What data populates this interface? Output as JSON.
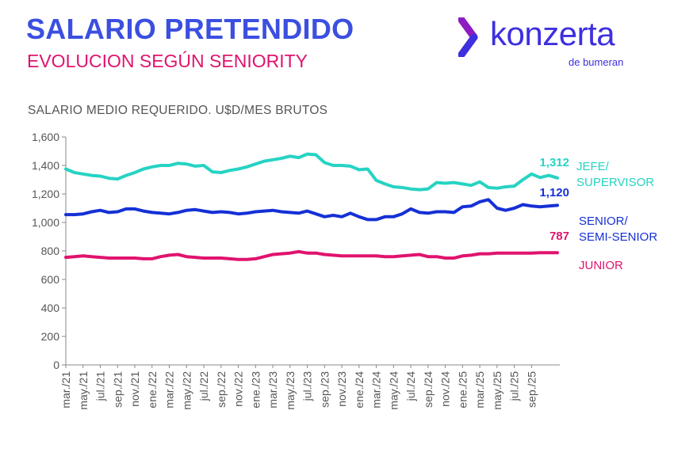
{
  "header": {
    "title": "SALARIO PRETENDIDO",
    "subtitle": "EVOLUCION SEGÚN SENIORITY"
  },
  "logo": {
    "brand": "konzerta",
    "tagline": "de bumeran",
    "icon": "chevron-mark-icon"
  },
  "colors": {
    "title": "#3b4fe0",
    "subtitle": "#e0136e",
    "jefe": "#27d3c3",
    "senior": "#1530d6",
    "junior": "#e0136e"
  },
  "chart_data": {
    "type": "line",
    "title": "SALARIO MEDIO REQUERIDO. U$D/MES BRUTOS",
    "ylim": [
      0,
      1600
    ],
    "yticks": [
      "0",
      "200",
      "400",
      "600",
      "800",
      "1,000",
      "1,200",
      "1,400",
      "1,600"
    ],
    "xtick_labels": [
      "mar./21",
      "may./21",
      "jul./21",
      "sep./21",
      "nov./21",
      "ene./22",
      "mar./22",
      "may./22",
      "jul./22",
      "sep./22",
      "nov./22",
      "ene./23",
      "mar./23",
      "may./23",
      "jul./23",
      "sep./23",
      "nov./23",
      "ene./24",
      "mar./24",
      "may./24",
      "jul./24",
      "sep./24",
      "nov./24",
      "ene./25",
      "mar./25",
      "may./25",
      "jul./25",
      "sep./25"
    ],
    "x_start": "mar./21",
    "x_end": "sep./25",
    "series": [
      {
        "name": "JEFE/ SUPERVISOR",
        "label_lines": [
          "JEFE/",
          "SUPERVISOR"
        ],
        "end_label": "1,312",
        "values": [
          1375,
          1350,
          1340,
          1330,
          1325,
          1310,
          1305,
          1330,
          1350,
          1375,
          1390,
          1400,
          1400,
          1415,
          1410,
          1395,
          1400,
          1355,
          1350,
          1365,
          1375,
          1390,
          1410,
          1430,
          1440,
          1450,
          1465,
          1455,
          1480,
          1475,
          1420,
          1400,
          1400,
          1395,
          1370,
          1375,
          1295,
          1270,
          1250,
          1245,
          1235,
          1230,
          1235,
          1280,
          1275,
          1280,
          1270,
          1260,
          1285,
          1245,
          1240,
          1250,
          1255,
          1300,
          1340,
          1315,
          1330,
          1312
        ]
      },
      {
        "name": "SENIOR/ SEMI-SENIOR",
        "label_lines": [
          "SENIOR/",
          "SEMI-SENIOR"
        ],
        "end_label": "1,120",
        "values": [
          1055,
          1055,
          1060,
          1075,
          1085,
          1070,
          1075,
          1095,
          1095,
          1080,
          1070,
          1065,
          1060,
          1070,
          1085,
          1090,
          1080,
          1070,
          1075,
          1070,
          1060,
          1065,
          1075,
          1080,
          1085,
          1075,
          1070,
          1065,
          1080,
          1060,
          1040,
          1050,
          1040,
          1065,
          1040,
          1020,
          1020,
          1040,
          1040,
          1060,
          1095,
          1070,
          1065,
          1075,
          1075,
          1070,
          1110,
          1115,
          1145,
          1160,
          1100,
          1085,
          1100,
          1125,
          1115,
          1110,
          1115,
          1120
        ]
      },
      {
        "name": "JUNIOR",
        "label_lines": [
          "JUNIOR"
        ],
        "end_label": "787",
        "values": [
          755,
          760,
          765,
          760,
          755,
          750,
          750,
          750,
          750,
          745,
          745,
          760,
          770,
          775,
          760,
          755,
          750,
          750,
          750,
          745,
          740,
          740,
          745,
          760,
          775,
          780,
          785,
          795,
          785,
          785,
          775,
          770,
          765,
          765,
          765,
          765,
          765,
          760,
          760,
          765,
          770,
          775,
          760,
          760,
          750,
          750,
          765,
          770,
          780,
          780,
          785,
          785,
          785,
          785,
          785,
          787,
          787,
          787
        ]
      }
    ]
  }
}
